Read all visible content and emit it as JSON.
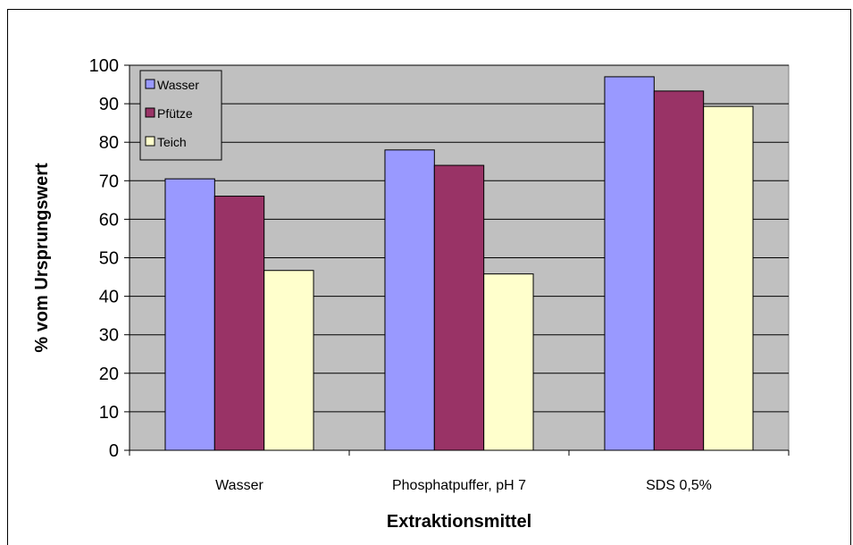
{
  "chart_data": {
    "type": "bar",
    "xlabel": "Extraktionsmittel",
    "ylabel": "% vom Ursprungswert",
    "categories": [
      "Wasser",
      "Phosphatpuffer, pH 7",
      "SDS 0,5%"
    ],
    "ylim": [
      0,
      100
    ],
    "yticks": [
      0,
      10,
      20,
      30,
      40,
      50,
      60,
      70,
      80,
      90,
      100
    ],
    "grid": true,
    "legend_position": "top-left",
    "series": [
      {
        "name": "Wasser",
        "color": "#9999ff",
        "values": [
          70.5,
          78.0,
          97.0
        ]
      },
      {
        "name": "Pfütze",
        "color": "#993366",
        "values": [
          66.0,
          74.0,
          93.3
        ]
      },
      {
        "name": "Teich",
        "color": "#ffffcc",
        "values": [
          46.7,
          45.8,
          89.3
        ]
      }
    ],
    "plot_background": "#c0c0c0"
  }
}
